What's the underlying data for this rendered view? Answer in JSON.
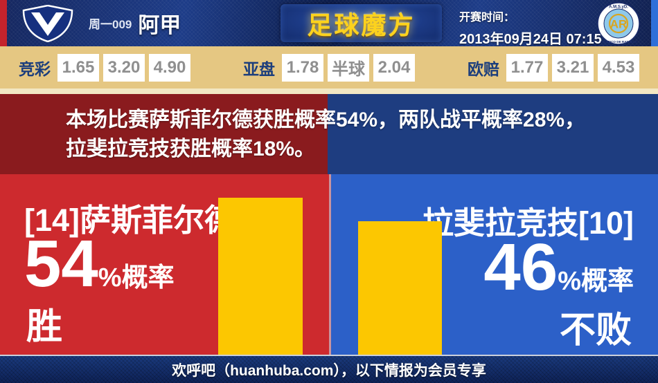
{
  "header": {
    "match_code": "周一009",
    "league": "阿甲",
    "brand": "足球魔方",
    "kickoff_label": "开赛时间：",
    "kickoff_time": "2013年09月24日 07:15",
    "home_badge_letter": "V",
    "away_badge_top_text": "A.M.S.yD.",
    "away_badge_bottom_text": "ATLETICO DE RAFAELA",
    "away_badge_monogram": "AR"
  },
  "odds": {
    "groups": [
      {
        "label": "竞彩",
        "values": [
          "1.65",
          "3.20",
          "4.90"
        ]
      },
      {
        "label": "亚盘",
        "values": [
          "1.78",
          "半球",
          "2.04"
        ]
      },
      {
        "label": "欧赔",
        "values": [
          "1.77",
          "3.21",
          "4.53"
        ]
      }
    ]
  },
  "banner": {
    "line1": "本场比赛萨斯菲尔德获胜概率54%，两队战平概率28%，",
    "line2": "拉斐拉竞技获胜概率18%。"
  },
  "matchup": {
    "home": {
      "name": "[14]萨斯菲尔德",
      "probability": "54",
      "prob_suffix": "%概率",
      "outcome": "胜",
      "win_percent": 54
    },
    "away": {
      "name": "拉斐拉竞技[10]",
      "probability": "46",
      "prob_suffix": "%概率",
      "outcome": "不败",
      "win_percent": 46
    }
  },
  "footer": {
    "text": "欢呼吧（huanhuba.com），以下情报为会员专享"
  },
  "colors": {
    "bar_yellow": "#fcc701",
    "home_red": "#cd2a2e",
    "away_blue": "#2c60c8",
    "banner_dark_red": "#8a1b1e",
    "banner_dark_blue": "#1e3d80",
    "odds_tan": "#e5c782",
    "brand_gold": "#fcd21d"
  }
}
